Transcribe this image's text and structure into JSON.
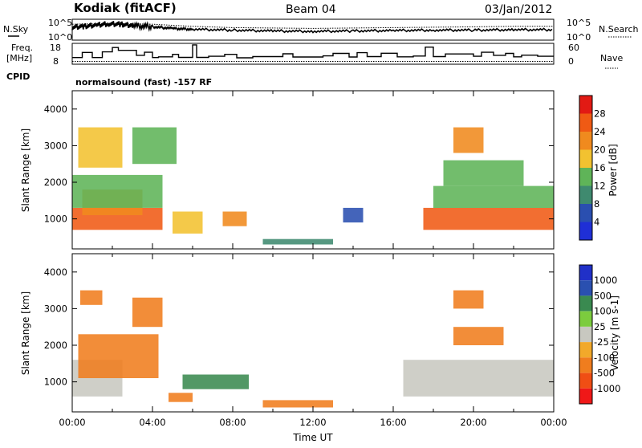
{
  "header": {
    "title": "Kodiak (fitACF)",
    "beam": "Beam 04",
    "date": "03/Jan/2012"
  },
  "left_labels": {
    "nsky": "N.Sky",
    "freq_top": "Freq.",
    "freq_unit": "[MHz]",
    "cpid": "CPID"
  },
  "right_labels": {
    "nsearch": "N.Search",
    "nave": "Nave"
  },
  "mode_text": "normalsound (fast) -157 RF",
  "colors": {
    "power": [
      "#1f2fd6",
      "#2a4fb0",
      "#3f8a6f",
      "#5fb458",
      "#f2c230",
      "#f08a1e",
      "#f05a14",
      "#e21a14"
    ],
    "velocity": [
      "#f01818",
      "#f04e14",
      "#f07d1e",
      "#f2a92a",
      "#c8c8c0",
      "#7ccc3e",
      "#3a8a50",
      "#2a50b0",
      "#2030c8"
    ]
  },
  "chart_data": [
    {
      "type": "line",
      "name": "noise-panel",
      "ylabel_left": "N.Sky",
      "ylabel_right": "N.Search",
      "yticks": [
        "10^5",
        "10^0"
      ],
      "series": [
        {
          "name": "N.Sky",
          "style": "solid",
          "x": [
            0,
            0.6,
            1.2,
            1.8,
            2.4,
            3,
            4,
            5,
            6,
            8,
            10,
            12,
            14,
            16,
            18,
            20,
            22,
            24
          ],
          "y": [
            3.1,
            3.3,
            3.6,
            3.9,
            3.8,
            3.5,
            3.2,
            2.8,
            2.6,
            2.4,
            2.2,
            2.1,
            2.2,
            2.3,
            2.4,
            2.4,
            2.5,
            2.5
          ]
        },
        {
          "name": "N.Search",
          "style": "dotted",
          "x": [
            0,
            2,
            4,
            6,
            8,
            10,
            12,
            14,
            16,
            18,
            20,
            22,
            24
          ],
          "y": [
            3.8,
            4.0,
            3.8,
            3.3,
            3.0,
            2.9,
            2.8,
            2.9,
            3.0,
            3.1,
            3.2,
            3.3,
            3.3
          ]
        }
      ]
    },
    {
      "type": "line",
      "name": "freq-nave-panel",
      "ylabel_left": "Freq. [MHz]",
      "ylabel_right": "Nave",
      "yticks_left": [
        "18",
        "8"
      ],
      "yticks_right": [
        "60",
        "0"
      ],
      "series": [
        {
          "name": "Freq.",
          "style": "step",
          "x": [
            0,
            0.5,
            1.0,
            1.5,
            2.0,
            2.3,
            3.2,
            3.6,
            4.0,
            4.3,
            5.0,
            5.3,
            6.0,
            6.2,
            6.8,
            7.6,
            8.2,
            9.0,
            10.5,
            11.0,
            12.5,
            13.0,
            13.8,
            14.2,
            14.7,
            15.4,
            16.2,
            17.0,
            17.6,
            18.0,
            18.6,
            20.0,
            20.4,
            21.0,
            21.6,
            22.0,
            22.4,
            23.2,
            24.0
          ],
          "y": [
            11.5,
            14.2,
            11.5,
            14.5,
            16.8,
            15.3,
            12.7,
            14.3,
            11.5,
            11.9,
            13.2,
            11.6,
            18.2,
            11.6,
            12.2,
            13.2,
            11.4,
            12.0,
            13.5,
            11.8,
            12.4,
            13.7,
            11.8,
            14.1,
            12.0,
            13.8,
            11.9,
            12.3,
            17.0,
            12.0,
            13.4,
            12.2,
            14.3,
            12.7,
            13.7,
            11.9,
            12.8,
            12.2,
            12.2
          ]
        },
        {
          "name": "Nave",
          "style": "dotted",
          "x": [
            0,
            24
          ],
          "y": [
            9.5,
            9.5
          ]
        }
      ],
      "mode": "normalsound (fast) -157 RF"
    },
    {
      "type": "heatmap",
      "name": "power",
      "xlabel": "",
      "ylabel": "Slant Range [km]",
      "xlim": [
        0,
        24
      ],
      "ylim": [
        180,
        4500
      ],
      "yticks": [
        1000,
        2000,
        3000,
        4000
      ],
      "colorbar": {
        "label": "Power [dB]",
        "ticks": [
          4,
          8,
          12,
          16,
          20,
          24,
          28
        ],
        "range": [
          0,
          32
        ]
      },
      "regions": [
        {
          "x0": 0.0,
          "x1": 4.5,
          "y0": 700,
          "y1": 1300,
          "value": 27
        },
        {
          "x0": 0.5,
          "x1": 3.5,
          "y0": 1100,
          "y1": 1800,
          "value": 22
        },
        {
          "x0": 0.0,
          "x1": 4.5,
          "y0": 1300,
          "y1": 2200,
          "value": 12
        },
        {
          "x0": 0.3,
          "x1": 2.5,
          "y0": 2400,
          "y1": 3500,
          "value": 16
        },
        {
          "x0": 3.0,
          "x1": 5.2,
          "y0": 2500,
          "y1": 3500,
          "value": 14
        },
        {
          "x0": 5.0,
          "x1": 6.5,
          "y0": 600,
          "y1": 1200,
          "value": 18
        },
        {
          "x0": 7.5,
          "x1": 8.7,
          "y0": 800,
          "y1": 1200,
          "value": 20
        },
        {
          "x0": 9.5,
          "x1": 13.0,
          "y0": 300,
          "y1": 450,
          "value": 10
        },
        {
          "x0": 13.5,
          "x1": 14.5,
          "y0": 900,
          "y1": 1300,
          "value": 6
        },
        {
          "x0": 17.5,
          "x1": 24.0,
          "y0": 700,
          "y1": 1300,
          "value": 25
        },
        {
          "x0": 18.0,
          "x1": 24.0,
          "y0": 1300,
          "y1": 1900,
          "value": 13
        },
        {
          "x0": 18.5,
          "x1": 22.5,
          "y0": 1900,
          "y1": 2600,
          "value": 15
        },
        {
          "x0": 19.0,
          "x1": 20.5,
          "y0": 2800,
          "y1": 3500,
          "value": 22
        }
      ]
    },
    {
      "type": "heatmap",
      "name": "velocity",
      "xlabel": "Time UT",
      "ylabel": "Slant Range [km]",
      "xlim": [
        0,
        24
      ],
      "ylim": [
        180,
        4500
      ],
      "yticks": [
        1000,
        2000,
        3000,
        4000
      ],
      "xticks": [
        "00:00",
        "04:00",
        "08:00",
        "12:00",
        "16:00",
        "20:00",
        "00:00"
      ],
      "colorbar": {
        "label": "Velocity [m s-1]",
        "ticks": [
          "1000",
          "500",
          "100",
          "25",
          "-25",
          "-100",
          "-500",
          "-1000"
        ]
      },
      "regions": [
        {
          "x0": 0.0,
          "x1": 2.5,
          "y0": 600,
          "y1": 1600,
          "value": 0
        },
        {
          "x0": 0.3,
          "x1": 4.3,
          "y0": 1100,
          "y1": 2300,
          "value": -300
        },
        {
          "x0": 0.4,
          "x1": 1.5,
          "y0": 3100,
          "y1": 3500,
          "value": -300
        },
        {
          "x0": 3.0,
          "x1": 4.5,
          "y0": 2500,
          "y1": 3300,
          "value": -150
        },
        {
          "x0": 4.8,
          "x1": 6.0,
          "y0": 450,
          "y1": 700,
          "value": -300
        },
        {
          "x0": 5.5,
          "x1": 8.8,
          "y0": 800,
          "y1": 1200,
          "value": 200
        },
        {
          "x0": 9.5,
          "x1": 13.0,
          "y0": 300,
          "y1": 500,
          "value": -150
        },
        {
          "x0": 16.5,
          "x1": 24.0,
          "y0": 600,
          "y1": 1600,
          "value": 0
        },
        {
          "x0": 19.0,
          "x1": 21.5,
          "y0": 2000,
          "y1": 2500,
          "value": -300
        },
        {
          "x0": 19.0,
          "x1": 20.5,
          "y0": 3000,
          "y1": 3500,
          "value": -300
        }
      ],
      "value_bins": [
        -1000,
        -500,
        -100,
        -25,
        25,
        100,
        500,
        1000
      ]
    }
  ]
}
